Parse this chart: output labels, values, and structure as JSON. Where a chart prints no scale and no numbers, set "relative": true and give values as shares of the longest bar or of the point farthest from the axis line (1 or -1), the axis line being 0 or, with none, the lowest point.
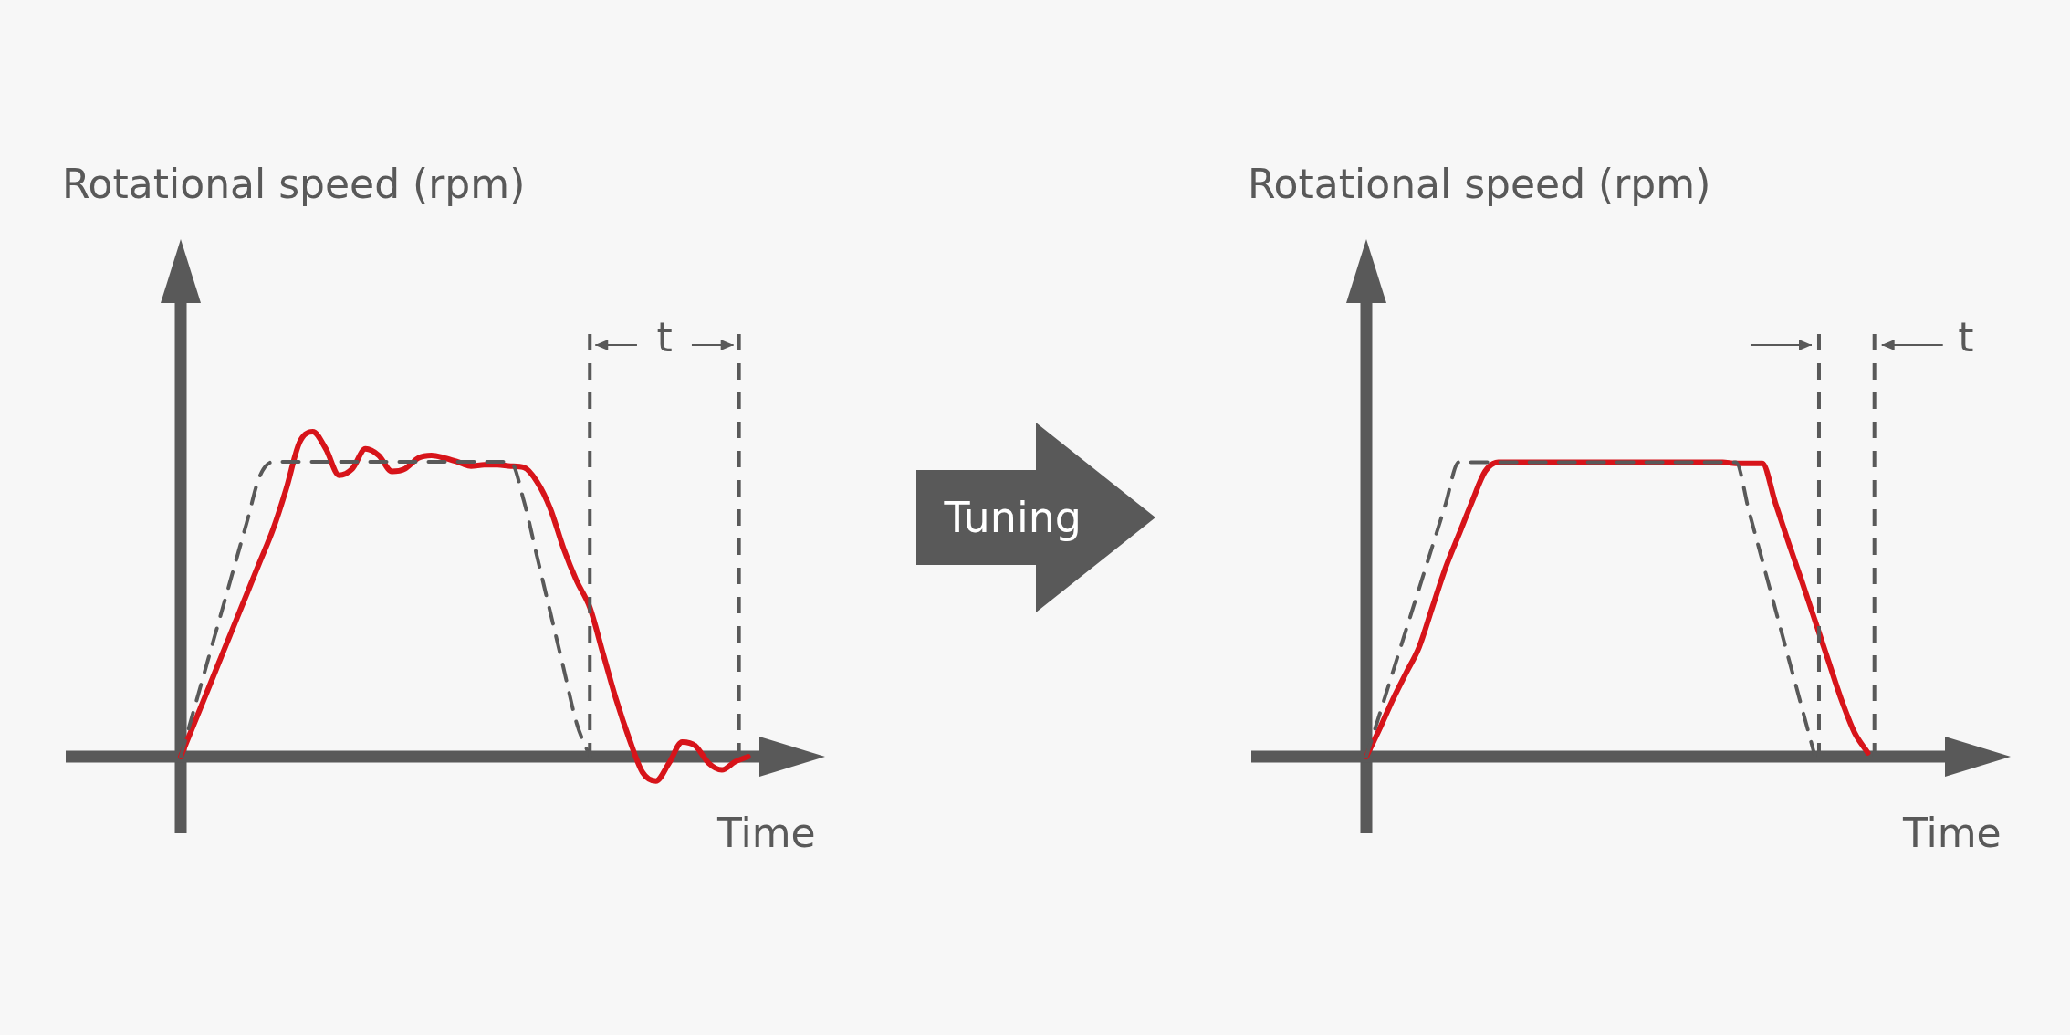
{
  "chart_data": [
    {
      "type": "line",
      "relative": true,
      "ylabel": "Rotational speed (rpm)",
      "xlabel": "Time",
      "annotations": [
        "t"
      ],
      "marker": "none",
      "categories": [
        null,
        null,
        null,
        null,
        null,
        null,
        null,
        null,
        null,
        null,
        null,
        null,
        null,
        null,
        null,
        null,
        null,
        null,
        null,
        null,
        null,
        null,
        null,
        null,
        null,
        null,
        null,
        null,
        null,
        null,
        null,
        null,
        null,
        null,
        null,
        null,
        null,
        null,
        null,
        null,
        null,
        null,
        null,
        null
      ],
      "series": [
        {
          "color": "#595959",
          "line_style": "dashed",
          "values": [
            0,
            0.144,
            0.288,
            0.432,
            0.576,
            0.72,
            0.864,
            0.907,
            0.907,
            0.907,
            0.907,
            0.907,
            0.907,
            0.907,
            0.907,
            0.907,
            0.907,
            0.907,
            0.907,
            0.907,
            0.907,
            0.907,
            0.907,
            0.907,
            0.907,
            0.907,
            0.787,
            0.616,
            0.445,
            0.274,
            0.103,
            0,
            null,
            null,
            null,
            null,
            null,
            null,
            null,
            null,
            null,
            null,
            null,
            null
          ]
        },
        {
          "color": "#d7141a",
          "line_style": "solid",
          "values": [
            0,
            0.1,
            0.2,
            0.3,
            0.4,
            0.5,
            0.6,
            0.7,
            0.825,
            0.967,
            1.0,
            0.947,
            0.866,
            0.886,
            0.947,
            0.927,
            0.878,
            0.886,
            0.919,
            0.927,
            0.919,
            0.907,
            0.894,
            0.898,
            0.898,
            0.894,
            0.89,
            0.846,
            0.764,
            0.642,
            0.541,
            0.459,
            0.317,
            0.175,
            0.053,
            -0.049,
            -0.075,
            -0.02,
            0.045,
            0.033,
            -0.02,
            -0.041,
            -0.016,
            0
          ]
        }
      ]
    },
    {
      "type": "other",
      "title": "Tuning"
    },
    {
      "type": "line",
      "relative": true,
      "ylabel": "Rotational speed (rpm)",
      "xlabel": "Time",
      "annotations": [
        "t"
      ],
      "marker": "none",
      "categories": [
        null,
        null,
        null,
        null,
        null,
        null,
        null,
        null,
        null,
        null,
        null,
        null,
        null,
        null,
        null,
        null,
        null,
        null,
        null,
        null,
        null,
        null,
        null,
        null,
        null,
        null,
        null,
        null,
        null,
        null,
        null,
        null,
        null,
        null,
        null,
        null,
        null,
        null,
        null,
        null
      ],
      "series": [
        {
          "color": "#595959",
          "line_style": "dashed",
          "values": [
            0,
            0.143,
            0.286,
            0.429,
            0.571,
            0.714,
            0.857,
            1,
            1,
            1,
            1,
            1,
            1,
            1,
            1,
            1,
            1,
            1,
            1,
            1,
            1,
            1,
            1,
            1,
            1,
            1,
            1,
            1,
            1,
            0.833,
            0.667,
            0.5,
            0.333,
            0.167,
            0,
            null,
            null,
            null,
            null,
            null
          ]
        },
        {
          "color": "#d7141a",
          "line_style": "solid",
          "values": [
            0,
            0.094,
            0.193,
            0.283,
            0.372,
            0.507,
            0.641,
            0.753,
            0.865,
            0.969,
            1,
            1,
            1,
            1,
            1,
            1,
            1,
            1,
            1,
            1,
            1,
            1,
            1,
            1,
            1,
            1,
            1,
            1,
            0.996,
            0.996,
            0.996,
            0.861,
            0.726,
            0.596,
            0.462,
            0.327,
            0.193,
            0.081,
            0.013,
            null
          ]
        }
      ]
    }
  ]
}
